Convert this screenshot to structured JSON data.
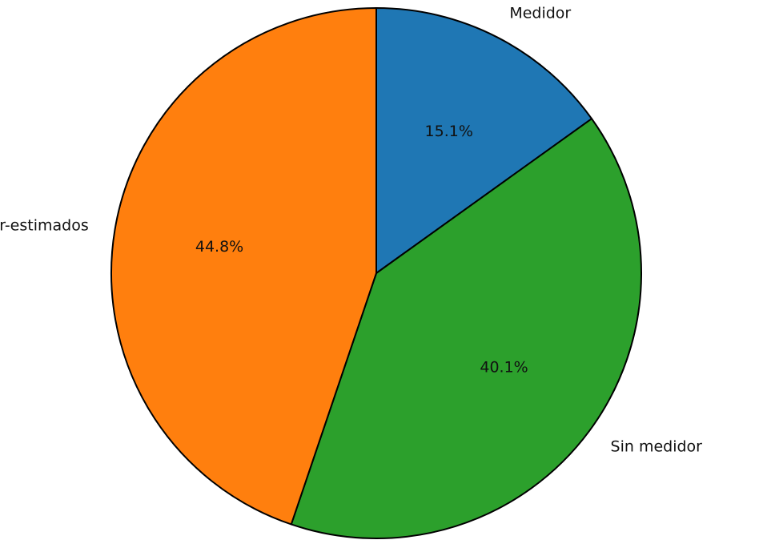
{
  "chart_data": {
    "type": "pie",
    "categories": [
      "Medidor",
      "Sin medidor",
      "Medidor-estimados"
    ],
    "values": [
      15.1,
      40.1,
      44.8
    ],
    "percent_labels": [
      "15.1%",
      "40.1%",
      "44.8%"
    ],
    "colors": [
      "#1f77b4",
      "#2ca02c",
      "#ff7f0e"
    ],
    "edge_color": "#000000",
    "title": "",
    "legend": "none",
    "start": "top",
    "direction": "clockwise"
  }
}
